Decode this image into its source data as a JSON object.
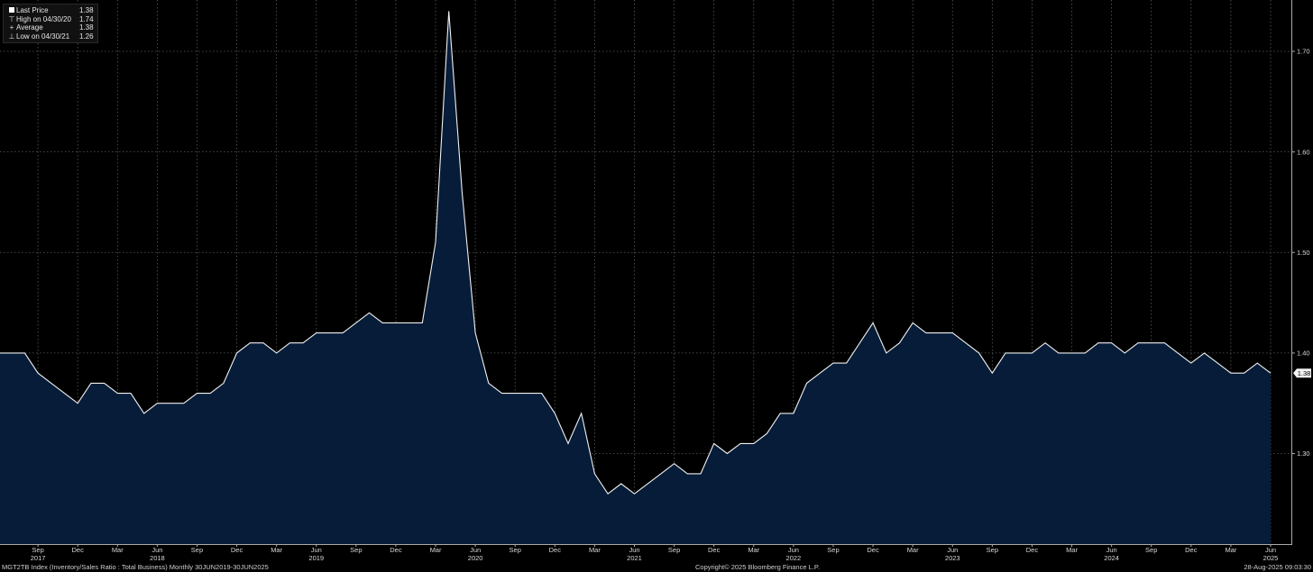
{
  "legend": [
    {
      "label": "Last Price",
      "value": "1.38",
      "icon": "box"
    },
    {
      "label": "High on 04/30/20",
      "value": "1.74",
      "icon": "high-marker"
    },
    {
      "label": "Average",
      "value": "1.38",
      "icon": "average-marker"
    },
    {
      "label": "Low on 04/30/21",
      "value": "1.26",
      "icon": "low-marker"
    }
  ],
  "footer": {
    "left": "MGT2TB Index (Inventory/Sales Ratio : Total Business)  Monthly 30JUN2019-30JUN2025",
    "center": "Copyright© 2025 Bloomberg Finance L.P.",
    "right": "28-Aug-2025 09:03:30"
  },
  "last_price_label": "1.38",
  "colors": {
    "background": "#000000",
    "fill": "#061c38",
    "line": "#ffffff",
    "grid": "#5a5a5a"
  },
  "chart_data": {
    "type": "area",
    "title": "",
    "xlabel": "",
    "ylabel": "",
    "ylim": [
      1.21,
      1.75
    ],
    "y_ticks": [
      1.3,
      1.4,
      1.5,
      1.6,
      1.7
    ],
    "y_tick_labels": [
      "1.30",
      "1.40",
      "1.50",
      "1.60",
      "1.70"
    ],
    "x_tick_labels": [
      {
        "date": "2017-09",
        "month": "Sep",
        "year": "2017"
      },
      {
        "date": "2017-12",
        "month": "Dec",
        "year": ""
      },
      {
        "date": "2018-03",
        "month": "Mar",
        "year": ""
      },
      {
        "date": "2018-06",
        "month": "Jun",
        "year": "2018"
      },
      {
        "date": "2018-09",
        "month": "Sep",
        "year": ""
      },
      {
        "date": "2018-12",
        "month": "Dec",
        "year": ""
      },
      {
        "date": "2019-03",
        "month": "Mar",
        "year": ""
      },
      {
        "date": "2019-06",
        "month": "Jun",
        "year": "2019"
      },
      {
        "date": "2019-09",
        "month": "Sep",
        "year": ""
      },
      {
        "date": "2019-12",
        "month": "Dec",
        "year": ""
      },
      {
        "date": "2020-03",
        "month": "Mar",
        "year": ""
      },
      {
        "date": "2020-06",
        "month": "Jun",
        "year": "2020"
      },
      {
        "date": "2020-09",
        "month": "Sep",
        "year": ""
      },
      {
        "date": "2020-12",
        "month": "Dec",
        "year": ""
      },
      {
        "date": "2021-03",
        "month": "Mar",
        "year": ""
      },
      {
        "date": "2021-06",
        "month": "Jun",
        "year": "2021"
      },
      {
        "date": "2021-09",
        "month": "Sep",
        "year": ""
      },
      {
        "date": "2021-12",
        "month": "Dec",
        "year": ""
      },
      {
        "date": "2022-03",
        "month": "Mar",
        "year": ""
      },
      {
        "date": "2022-06",
        "month": "Jun",
        "year": "2022"
      },
      {
        "date": "2022-09",
        "month": "Sep",
        "year": ""
      },
      {
        "date": "2022-12",
        "month": "Dec",
        "year": ""
      },
      {
        "date": "2023-03",
        "month": "Mar",
        "year": ""
      },
      {
        "date": "2023-06",
        "month": "Jun",
        "year": "2023"
      },
      {
        "date": "2023-09",
        "month": "Sep",
        "year": ""
      },
      {
        "date": "2023-12",
        "month": "Dec",
        "year": ""
      },
      {
        "date": "2024-03",
        "month": "Mar",
        "year": ""
      },
      {
        "date": "2024-06",
        "month": "Jun",
        "year": "2024"
      },
      {
        "date": "2024-09",
        "month": "Sep",
        "year": ""
      },
      {
        "date": "2024-12",
        "month": "Dec",
        "year": ""
      },
      {
        "date": "2025-03",
        "month": "Mar",
        "year": ""
      },
      {
        "date": "2025-06",
        "month": "Jun",
        "year": "2025"
      }
    ],
    "series": [
      {
        "dates": [
          "2017-06",
          "2017-07",
          "2017-08",
          "2017-09",
          "2017-10",
          "2017-11",
          "2017-12",
          "2018-01",
          "2018-02",
          "2018-03",
          "2018-04",
          "2018-05",
          "2018-06",
          "2018-07",
          "2018-08",
          "2018-09",
          "2018-10",
          "2018-11",
          "2018-12",
          "2019-01",
          "2019-02",
          "2019-03",
          "2019-04",
          "2019-05",
          "2019-06",
          "2019-07",
          "2019-08",
          "2019-09",
          "2019-10",
          "2019-11",
          "2019-12",
          "2020-01",
          "2020-02",
          "2020-03",
          "2020-04",
          "2020-05",
          "2020-06",
          "2020-07",
          "2020-08",
          "2020-09",
          "2020-10",
          "2020-11",
          "2020-12",
          "2021-01",
          "2021-02",
          "2021-03",
          "2021-04",
          "2021-05",
          "2021-06",
          "2021-07",
          "2021-08",
          "2021-09",
          "2021-10",
          "2021-11",
          "2021-12",
          "2022-01",
          "2022-02",
          "2022-03",
          "2022-04",
          "2022-05",
          "2022-06",
          "2022-07",
          "2022-08",
          "2022-09",
          "2022-10",
          "2022-11",
          "2022-12",
          "2023-01",
          "2023-02",
          "2023-03",
          "2023-04",
          "2023-05",
          "2023-06",
          "2023-07",
          "2023-08",
          "2023-09",
          "2023-10",
          "2023-11",
          "2023-12",
          "2024-01",
          "2024-02",
          "2024-03",
          "2024-04",
          "2024-05",
          "2024-06",
          "2024-07",
          "2024-08",
          "2024-09",
          "2024-10",
          "2024-11",
          "2024-12",
          "2025-01",
          "2025-02",
          "2025-03",
          "2025-04",
          "2025-05",
          "2025-06"
        ],
        "values": [
          1.4,
          1.4,
          1.4,
          1.38,
          1.37,
          1.36,
          1.35,
          1.37,
          1.37,
          1.36,
          1.36,
          1.34,
          1.35,
          1.35,
          1.35,
          1.36,
          1.36,
          1.37,
          1.4,
          1.41,
          1.41,
          1.4,
          1.41,
          1.41,
          1.42,
          1.42,
          1.42,
          1.43,
          1.44,
          1.43,
          1.43,
          1.43,
          1.43,
          1.51,
          1.74,
          1.56,
          1.42,
          1.37,
          1.36,
          1.36,
          1.36,
          1.36,
          1.34,
          1.31,
          1.34,
          1.28,
          1.26,
          1.27,
          1.26,
          1.27,
          1.28,
          1.29,
          1.28,
          1.28,
          1.31,
          1.3,
          1.31,
          1.31,
          1.32,
          1.34,
          1.34,
          1.37,
          1.38,
          1.39,
          1.39,
          1.41,
          1.43,
          1.4,
          1.41,
          1.43,
          1.42,
          1.42,
          1.42,
          1.41,
          1.4,
          1.38,
          1.4,
          1.4,
          1.4,
          1.41,
          1.4,
          1.4,
          1.4,
          1.41,
          1.41,
          1.4,
          1.41,
          1.41,
          1.41,
          1.4,
          1.39,
          1.4,
          1.39,
          1.38,
          1.38,
          1.39,
          1.38
        ]
      }
    ]
  }
}
